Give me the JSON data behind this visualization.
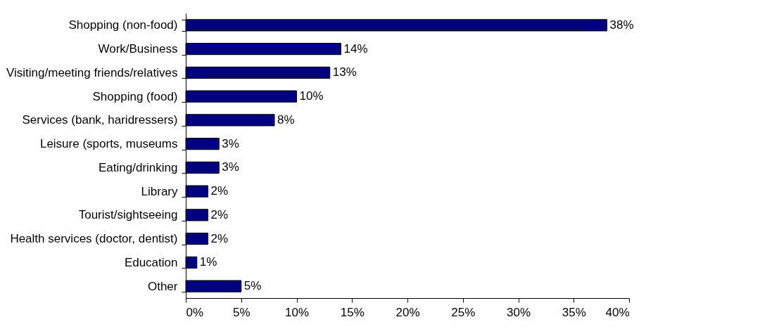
{
  "chart_data": {
    "type": "bar",
    "orientation": "horizontal",
    "categories": [
      "Shopping (non-food)",
      "Work/Business",
      "Visiting/meeting friends/relatives",
      "Shopping (food)",
      "Services (bank, haridressers)",
      "Leisure (sports, museums",
      "Eating/drinking",
      "Library",
      "Tourist/sightseeing",
      "Health services (doctor, dentist)",
      "Education",
      "Other"
    ],
    "values": [
      38,
      14,
      13,
      10,
      8,
      3,
      3,
      2,
      2,
      2,
      1,
      5
    ],
    "value_labels": [
      "38%",
      "14%",
      "13%",
      "10%",
      "8%",
      "3%",
      "3%",
      "2%",
      "2%",
      "2%",
      "1%",
      "5%"
    ],
    "color": "#000080",
    "xlim": [
      0,
      40
    ],
    "xticks": [
      {
        "value": 0,
        "label": "0%"
      },
      {
        "value": 5,
        "label": "5%"
      },
      {
        "value": 10,
        "label": "10%"
      },
      {
        "value": 15,
        "label": "15%"
      },
      {
        "value": 20,
        "label": "20%"
      },
      {
        "value": 25,
        "label": "25%"
      },
      {
        "value": 30,
        "label": "30%"
      },
      {
        "value": 35,
        "label": "35%"
      },
      {
        "value": 40,
        "label": "40%"
      }
    ],
    "grid": false
  }
}
